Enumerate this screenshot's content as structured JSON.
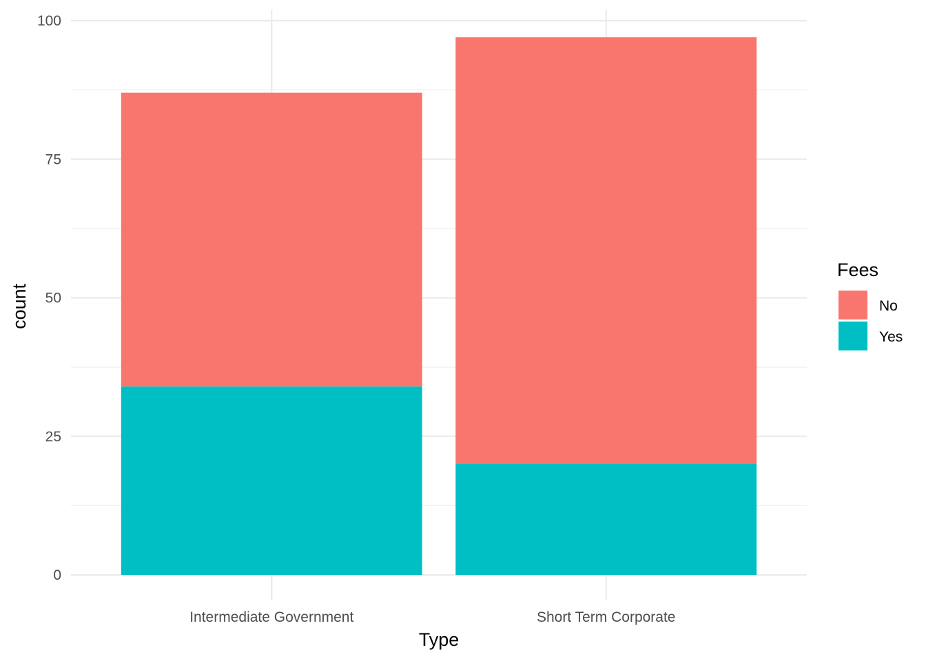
{
  "chart_data": {
    "type": "bar",
    "stacked": true,
    "categories": [
      "Intermediate Government",
      "Short Term Corporate"
    ],
    "series": [
      {
        "name": "No",
        "color": "#f8766d",
        "values": [
          53,
          77
        ]
      },
      {
        "name": "Yes",
        "color": "#00bfc4",
        "values": [
          34,
          20
        ]
      }
    ],
    "xlabel": "Type",
    "ylabel": "count",
    "ylim": [
      0,
      100
    ],
    "yticks": [
      0,
      25,
      50,
      75,
      100
    ],
    "ytick_labels": [
      "0",
      "25",
      "50",
      "75",
      "100"
    ],
    "grid": true,
    "legend": {
      "title": "Fees",
      "placement": "right"
    }
  }
}
